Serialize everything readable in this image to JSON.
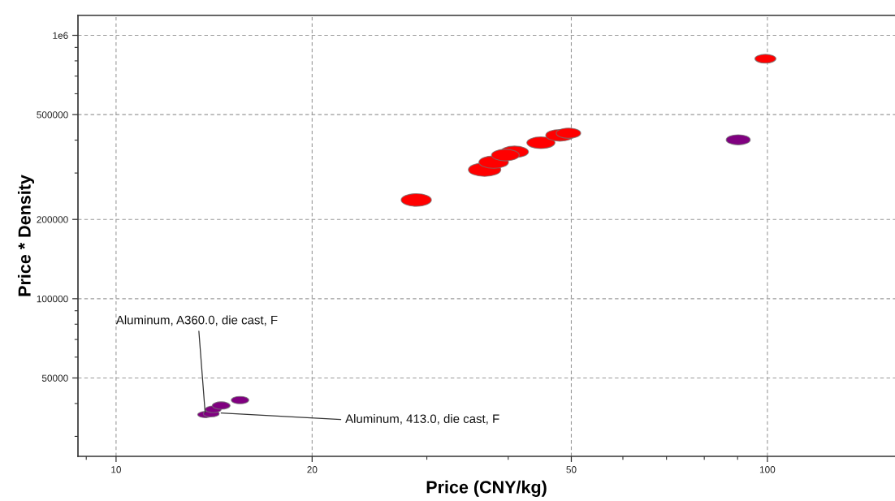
{
  "chart_data": {
    "type": "bubble",
    "xlabel": "Price (CNY/kg)",
    "ylabel": "Price * Density",
    "log": "xy",
    "xlim": [
      8.74,
      157
    ],
    "ylim": [
      25200,
      1190000
    ],
    "xticks": [
      {
        "value": 9,
        "label": null
      },
      10,
      20,
      {
        "value": 30,
        "label": null
      },
      {
        "value": 40,
        "label": null
      },
      50,
      {
        "value": 60,
        "label": null
      },
      {
        "value": 70,
        "label": null
      },
      {
        "value": 80,
        "label": null
      },
      {
        "value": 90,
        "label": null
      },
      100
    ],
    "yticks": [
      {
        "value": 30000,
        "label": null
      },
      {
        "value": 40000,
        "label": null
      },
      50000,
      {
        "value": 60000,
        "label": null
      },
      {
        "value": 70000,
        "label": null
      },
      {
        "value": 80000,
        "label": null
      },
      {
        "value": 90000,
        "label": null
      },
      100000,
      200000,
      {
        "value": 300000,
        "label": null
      },
      {
        "value": 400000,
        "label": null
      },
      500000,
      {
        "value": 600000,
        "label": null
      },
      {
        "value": 700000,
        "label": null
      },
      {
        "value": 800000,
        "label": null
      },
      {
        "value": 900000,
        "label": null
      },
      {
        "value": 1000000,
        "label": "1e6"
      }
    ],
    "grid": true,
    "series": [
      {
        "color": "#ff0000",
        "x": [
          28.9,
          36.8,
          38.0,
          40.9,
          39.6,
          44.9,
          48.0,
          49.5,
          99.3
        ],
        "values": [
          237000,
          309000,
          330000,
          361000,
          351000,
          391000,
          417000,
          425000,
          815000
        ],
        "sizes": [
          0.87,
          1.0,
          0.83,
          0.74,
          0.73,
          0.75,
          0.75,
          0.57,
          0.42
        ]
      },
      {
        "color": "#800080",
        "x": [
          13.7,
          14.0,
          14.1,
          14.5,
          15.5,
          90.2
        ],
        "values": [
          36300,
          36600,
          38000,
          39300,
          41200,
          401000
        ],
        "sizes": [
          0.21,
          0.24,
          0.24,
          0.3,
          0.29,
          0.55
        ]
      }
    ],
    "annotations": [
      {
        "text": "Aluminum, A360.0, die cast, F",
        "x": 13.7,
        "y": 37000
      },
      {
        "text": "Aluminum, 413.0, die cast, F",
        "x": 14.5,
        "y": 36800
      }
    ]
  }
}
